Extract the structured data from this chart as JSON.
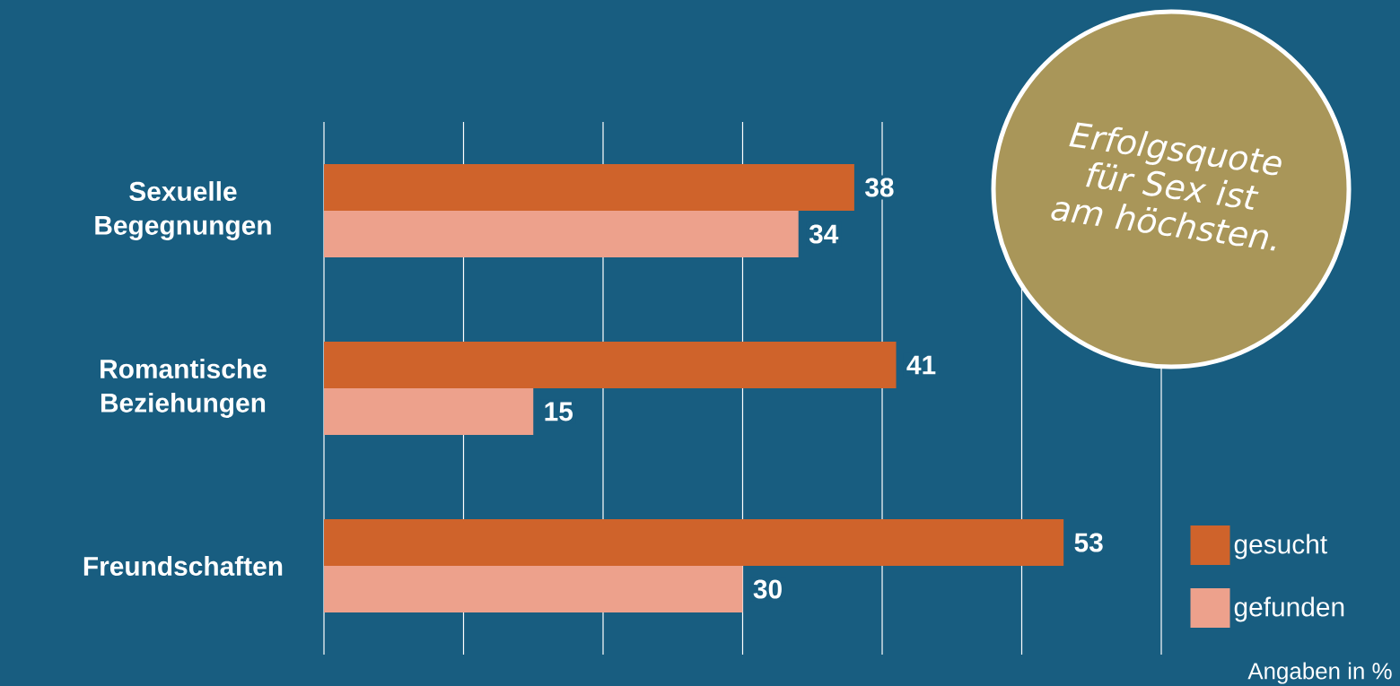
{
  "chart_data": {
    "type": "bar",
    "orientation": "horizontal",
    "categories": [
      "Sexuelle Begegnungen",
      "Romantische Beziehungen",
      "Freundschaften"
    ],
    "series": [
      {
        "name": "gesucht",
        "color": "#cf632b",
        "values": [
          38,
          41,
          53
        ]
      },
      {
        "name": "gefunden",
        "color": "#eda18c",
        "values": [
          34,
          15,
          30
        ]
      }
    ],
    "xlim": [
      0,
      60
    ],
    "xticks": [
      {
        "value": 0,
        "label": null
      },
      {
        "value": 10,
        "label": null
      },
      {
        "value": 20,
        "label": null
      },
      {
        "value": 30,
        "label": null
      },
      {
        "value": 40,
        "label": null
      },
      {
        "value": 50,
        "label": null
      },
      {
        "value": 60,
        "label": null
      }
    ],
    "tick_labels": "y",
    "grid": "x",
    "data_labels": true,
    "legend": "bottom right",
    "annotations": [
      "Erfolgsquote für Sex ist am höchsten.",
      "Angaben in %"
    ]
  }
}
